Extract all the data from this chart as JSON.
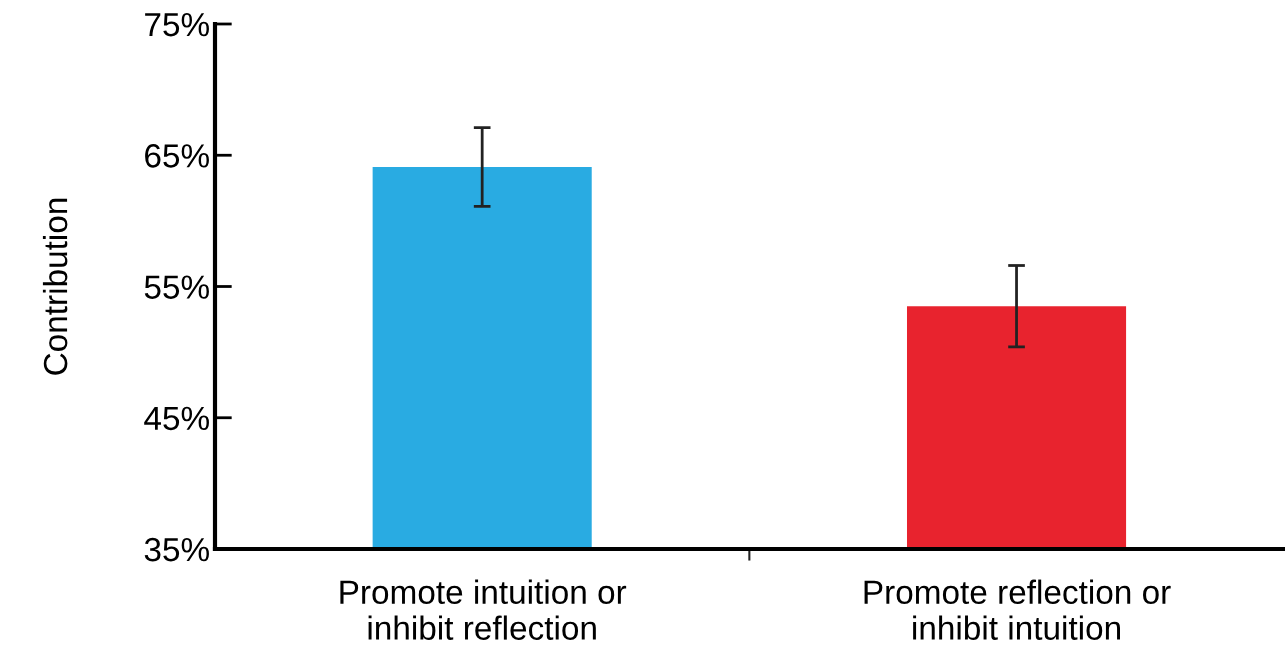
{
  "chart_data": {
    "type": "bar",
    "ylabel": "Contribution",
    "categories": [
      "Promote intuition or\ninhibit reflection",
      "Promote reflection or\ninhibit intuition"
    ],
    "values": [
      64.1,
      53.5
    ],
    "colors": [
      "#29abe2",
      "#e8232e"
    ],
    "errors": [
      3.0,
      3.1
    ],
    "ylim": [
      35,
      75
    ],
    "yticks": [
      {
        "value": 35,
        "label": "35%"
      },
      {
        "value": 45,
        "label": "45%"
      },
      {
        "value": 55,
        "label": "55%"
      },
      {
        "value": 65,
        "label": "65%"
      },
      {
        "value": 75,
        "label": "75%"
      }
    ],
    "grid": false,
    "legend": false
  }
}
